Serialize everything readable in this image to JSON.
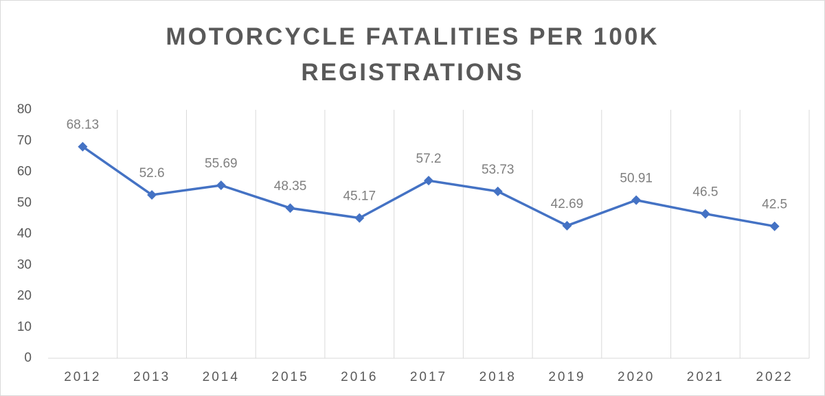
{
  "chart_data": {
    "type": "line",
    "title": "MOTORCYCLE FATALITIES PER 100K REGISTRATIONS",
    "categories": [
      "2012",
      "2013",
      "2014",
      "2015",
      "2016",
      "2017",
      "2018",
      "2019",
      "2020",
      "2021",
      "2022"
    ],
    "series": [
      {
        "color": "#4472c4",
        "values": [
          68.13,
          52.6,
          55.69,
          48.35,
          45.17,
          57.2,
          53.73,
          42.69,
          50.91,
          46.5,
          42.5
        ]
      }
    ],
    "ylim": [
      0,
      80
    ],
    "yticks": [
      0,
      10,
      20,
      30,
      40,
      50,
      60,
      70,
      80
    ],
    "grid": "x",
    "data_labels": true
  }
}
